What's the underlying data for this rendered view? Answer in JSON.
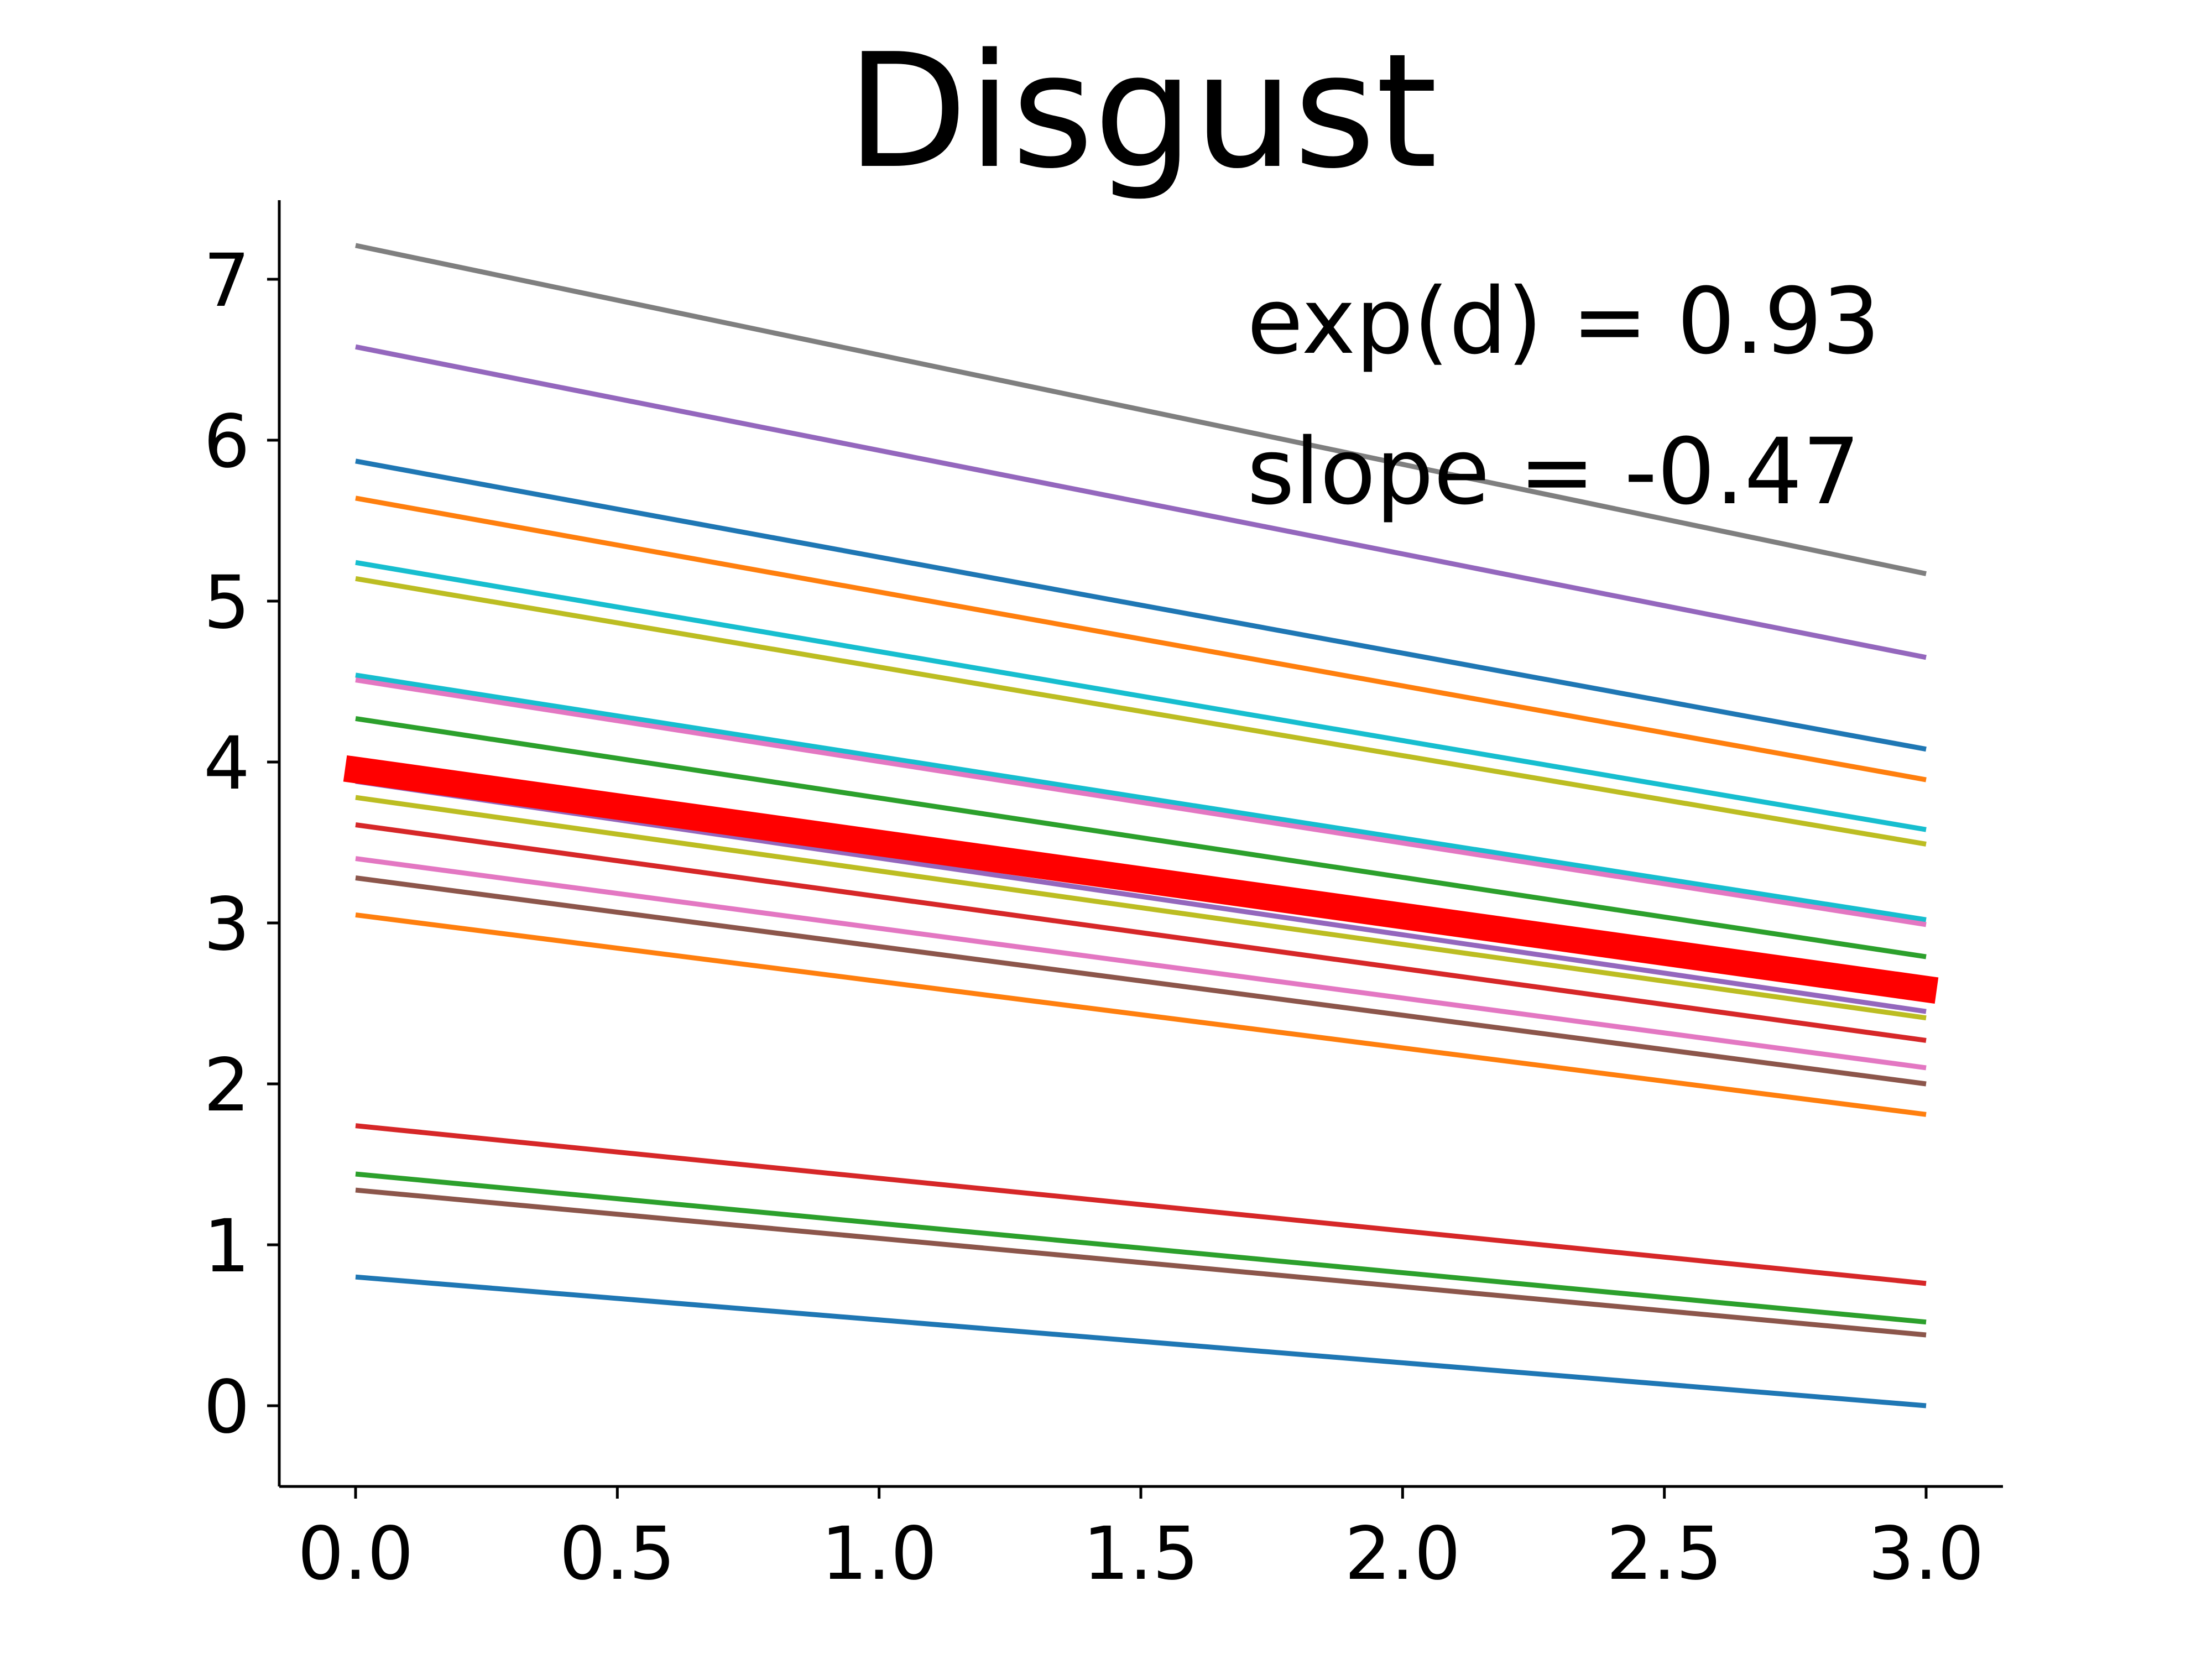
{
  "chart_data": {
    "type": "line",
    "title": "Disgust",
    "xlabel": "",
    "ylabel": "",
    "xlim": [
      -0.15,
      3.15
    ],
    "ylim": [
      -0.5,
      7.5
    ],
    "x_ticks": [
      "0.0",
      "0.5",
      "1.0",
      "1.5",
      "2.0",
      "2.5",
      "3.0"
    ],
    "y_ticks": [
      "0",
      "1",
      "2",
      "3",
      "4",
      "5",
      "6",
      "7"
    ],
    "grid": false,
    "legend": "none",
    "annotations": [
      "exp(d) = 0.93",
      "slope = -0.47"
    ],
    "series": [
      {
        "color": "#7f7f7f",
        "width": "thin",
        "x": [
          0,
          3
        ],
        "y": [
          7.21,
          5.17
        ]
      },
      {
        "color": "#9467bd",
        "width": "thin",
        "x": [
          0,
          3
        ],
        "y": [
          6.58,
          4.65
        ]
      },
      {
        "color": "#1f77b4",
        "width": "thin",
        "x": [
          0,
          3
        ],
        "y": [
          5.87,
          4.08
        ]
      },
      {
        "color": "#ff7f0e",
        "width": "thin",
        "x": [
          0,
          3
        ],
        "y": [
          5.64,
          3.89
        ]
      },
      {
        "color": "#17becf",
        "width": "thin",
        "x": [
          0,
          3
        ],
        "y": [
          5.24,
          3.58
        ]
      },
      {
        "color": "#bcbd22",
        "width": "thin",
        "x": [
          0,
          3
        ],
        "y": [
          5.14,
          3.49
        ]
      },
      {
        "color": "#17becf",
        "width": "thin",
        "x": [
          0,
          3
        ],
        "y": [
          4.54,
          3.02
        ]
      },
      {
        "color": "#e377c2",
        "width": "thin",
        "x": [
          0,
          3
        ],
        "y": [
          4.51,
          2.99
        ]
      },
      {
        "color": "#2ca02c",
        "width": "thin",
        "x": [
          0,
          3
        ],
        "y": [
          4.27,
          2.79
        ]
      },
      {
        "color": "#9467bd",
        "width": "thin",
        "x": [
          0,
          3
        ],
        "y": [
          3.88,
          2.45
        ]
      },
      {
        "color": "#bcbd22",
        "width": "thin",
        "x": [
          0,
          3
        ],
        "y": [
          3.78,
          2.41
        ]
      },
      {
        "color": "#d62728",
        "width": "thin",
        "x": [
          0,
          3
        ],
        "y": [
          3.61,
          2.27
        ]
      },
      {
        "color": "#e377c2",
        "width": "thin",
        "x": [
          0,
          3
        ],
        "y": [
          3.4,
          2.1
        ]
      },
      {
        "color": "#8c564b",
        "width": "thin",
        "x": [
          0,
          3
        ],
        "y": [
          3.28,
          2.0
        ]
      },
      {
        "color": "#ff7f0e",
        "width": "thin",
        "x": [
          0,
          3
        ],
        "y": [
          3.05,
          1.81
        ]
      },
      {
        "color": "#d62728",
        "width": "thin",
        "x": [
          0,
          3
        ],
        "y": [
          1.74,
          0.76
        ]
      },
      {
        "color": "#2ca02c",
        "width": "thin",
        "x": [
          0,
          3
        ],
        "y": [
          1.44,
          0.52
        ]
      },
      {
        "color": "#8c564b",
        "width": "thin",
        "x": [
          0,
          3
        ],
        "y": [
          1.34,
          0.44
        ]
      },
      {
        "color": "#1f77b4",
        "width": "thin",
        "x": [
          0,
          3
        ],
        "y": [
          0.8,
          0.0
        ]
      },
      {
        "color": "#ff0000",
        "width": "thick",
        "x": [
          -0.02,
          3.02
        ],
        "y": [
          3.96,
          2.58
        ]
      }
    ]
  }
}
